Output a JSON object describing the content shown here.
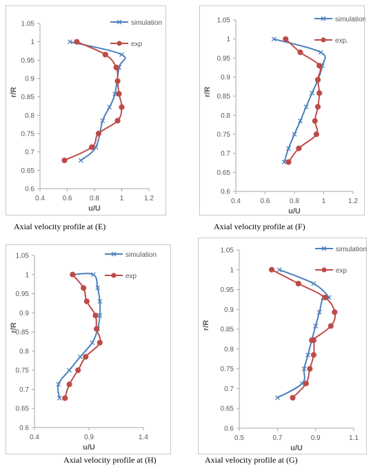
{
  "colors": {
    "simulation": "#4a7ebb",
    "exp": "#be4b48",
    "axis": "#a6a6a6",
    "text": "#595959"
  },
  "chart_data": [
    {
      "type": "line",
      "caption": "Axial velocity profile at (E)",
      "xlabel": "u/U",
      "ylabel": "r/R",
      "xlim": [
        0.4,
        1.2
      ],
      "xticks": [
        0.4,
        0.6,
        0.8,
        1,
        1.2
      ],
      "xtick_labels": [
        "0.4",
        "0.6",
        "0.8",
        "1",
        "1.2"
      ],
      "ylim": [
        0.6,
        1.05
      ],
      "yticks": [
        0.6,
        0.65,
        0.7,
        0.75,
        0.8,
        0.85,
        0.9,
        0.95,
        1,
        1.05
      ],
      "ytick_labels": [
        "0.6",
        "0.65",
        "0.7",
        "0.75",
        "0.8",
        "0.85",
        "0.9",
        "0.95",
        "1",
        "1.05"
      ],
      "grid": false,
      "legend_position": "top-right",
      "series": [
        {
          "name": "simulation",
          "marker": "x",
          "x": [
            0.7,
            0.81,
            0.86,
            0.91,
            0.95,
            0.98,
            1.0,
            0.62
          ],
          "y": [
            0.677,
            0.713,
            0.785,
            0.822,
            0.858,
            0.93,
            0.965,
            1.0
          ]
        },
        {
          "name": "exp",
          "marker": "circle",
          "x": [
            0.58,
            0.78,
            0.83,
            0.97,
            1.0,
            0.98,
            0.97,
            0.96,
            0.88,
            0.67
          ],
          "y": [
            0.677,
            0.713,
            0.75,
            0.785,
            0.822,
            0.858,
            0.893,
            0.93,
            0.965,
            1.0
          ]
        }
      ]
    },
    {
      "type": "line",
      "caption": "Axial velocity profile at (F)",
      "xlabel": "u/U",
      "ylabel": "r/R",
      "xlim": [
        0.4,
        1.2
      ],
      "xticks": [
        0.4,
        0.6,
        0.8,
        1,
        1.2
      ],
      "xtick_labels": [
        "0.4",
        "0.6",
        "0.8",
        "1",
        "1.2"
      ],
      "ylim": [
        0.6,
        1.05
      ],
      "yticks": [
        0.6,
        0.65,
        0.7,
        0.75,
        0.8,
        0.85,
        0.9,
        0.95,
        1,
        1.05
      ],
      "ytick_labels": [
        "0.6",
        "0.65",
        "0.7",
        "0.75",
        "0.8",
        "0.85",
        "0.9",
        "0.95",
        "1",
        "1.05"
      ],
      "grid": false,
      "legend_position": "top-right",
      "series": [
        {
          "name": "simulation",
          "marker": "x",
          "x": [
            0.73,
            0.76,
            0.8,
            0.84,
            0.88,
            0.92,
            0.96,
            0.99,
            0.98,
            0.66
          ],
          "y": [
            0.677,
            0.713,
            0.75,
            0.785,
            0.822,
            0.858,
            0.893,
            0.93,
            0.965,
            1.0
          ]
        },
        {
          "name": "exp.",
          "marker": "circle",
          "x": [
            0.76,
            0.83,
            0.95,
            0.94,
            0.96,
            0.97,
            0.96,
            0.97,
            0.84,
            0.74
          ],
          "y": [
            0.677,
            0.713,
            0.75,
            0.785,
            0.822,
            0.858,
            0.893,
            0.93,
            0.965,
            1.0
          ]
        }
      ]
    },
    {
      "type": "line",
      "caption": "Axial velocity profile at (H)",
      "xlabel": "u/U",
      "ylabel": "r/R",
      "xlim": [
        0.4,
        1.4
      ],
      "xticks": [
        0.4,
        0.9,
        1.4
      ],
      "xtick_labels": [
        "0.4",
        "0.9",
        "1.4"
      ],
      "ylim": [
        0.6,
        1.05
      ],
      "yticks": [
        0.6,
        0.65,
        0.7,
        0.75,
        0.8,
        0.85,
        0.9,
        0.95,
        1,
        1.05
      ],
      "ytick_labels": [
        "0.6",
        "0.65",
        "0.7",
        "0.75",
        "0.8",
        "0.85",
        "0.9",
        "0.95",
        "1",
        "1.05"
      ],
      "grid": false,
      "legend_position": "top-right",
      "series": [
        {
          "name": "simulation",
          "marker": "x",
          "x": [
            0.63,
            0.62,
            0.72,
            0.82,
            0.93,
            0.98,
            1.0,
            1.0,
            0.98,
            0.94,
            0.75
          ],
          "y": [
            0.677,
            0.713,
            0.75,
            0.785,
            0.822,
            0.858,
            0.893,
            0.93,
            0.965,
            1.0,
            1.0
          ]
        },
        {
          "name": "exp",
          "marker": "circle",
          "x": [
            0.68,
            0.72,
            0.8,
            0.87,
            1.0,
            0.97,
            0.96,
            0.88,
            0.85,
            0.75
          ],
          "y": [
            0.677,
            0.713,
            0.75,
            0.785,
            0.822,
            0.858,
            0.893,
            0.93,
            0.965,
            1.0
          ]
        }
      ]
    },
    {
      "type": "line",
      "caption": "Axial velocity profile at (G)",
      "xlabel": "u/U",
      "ylabel": "r/R",
      "xlim": [
        0.5,
        1.1
      ],
      "xticks": [
        0.5,
        0.7,
        0.9,
        1.1
      ],
      "xtick_labels": [
        "0.5",
        "0.7",
        "0.9",
        "1.1"
      ],
      "ylim": [
        0.6,
        1.05
      ],
      "yticks": [
        0.6,
        0.65,
        0.7,
        0.75,
        0.8,
        0.85,
        0.9,
        0.95,
        1,
        1.05
      ],
      "ytick_labels": [
        "0.6",
        "0.65",
        "0.7",
        "0.75",
        "0.8",
        "0.85",
        "0.9",
        "0.95",
        "1",
        "1.05"
      ],
      "grid": false,
      "legend_position": "top-right",
      "series": [
        {
          "name": "simulation",
          "marker": "x",
          "x": [
            0.7,
            0.83,
            0.84,
            0.86,
            0.88,
            0.9,
            0.92,
            0.94,
            0.97,
            0.89,
            0.71
          ],
          "y": [
            0.677,
            0.713,
            0.75,
            0.785,
            0.822,
            0.858,
            0.893,
            0.93,
            0.93,
            0.965,
            1.0
          ]
        },
        {
          "name": "exp",
          "marker": "circle",
          "x": [
            0.78,
            0.85,
            0.87,
            0.89,
            0.89,
            0.88,
            0.98,
            1.0,
            0.95,
            0.81,
            0.67
          ],
          "y": [
            0.677,
            0.713,
            0.75,
            0.785,
            0.822,
            0.822,
            0.858,
            0.893,
            0.93,
            0.965,
            1.0
          ]
        }
      ]
    }
  ]
}
